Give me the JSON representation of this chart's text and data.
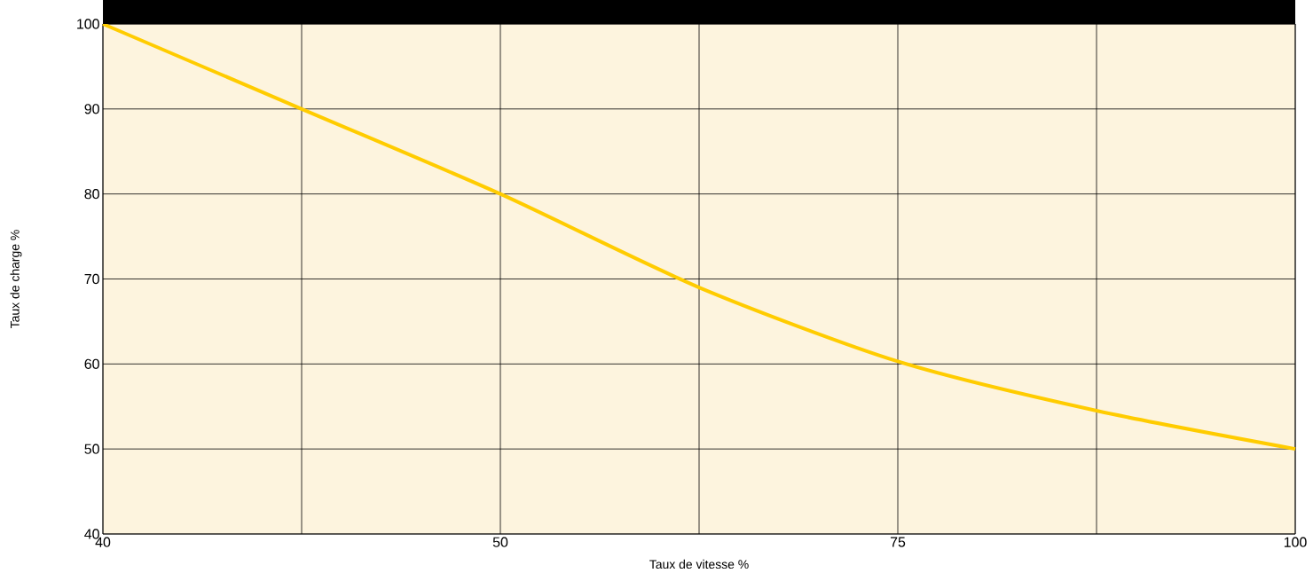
{
  "chart_data": {
    "type": "line",
    "xlabel": "Taux de vitesse %",
    "ylabel": "Taux de charge %",
    "categories": [
      "40",
      null,
      "50",
      null,
      "75",
      null,
      "100"
    ],
    "series": [
      {
        "color": "#ffcc00",
        "values": [
          100,
          90,
          80,
          69,
          60.3,
          54.5,
          50
        ]
      }
    ],
    "ylim": [
      40,
      100
    ],
    "yticks": [
      40,
      50,
      60,
      70,
      80,
      90,
      100
    ],
    "grid": true,
    "marker": "none",
    "line_style": "solid"
  }
}
